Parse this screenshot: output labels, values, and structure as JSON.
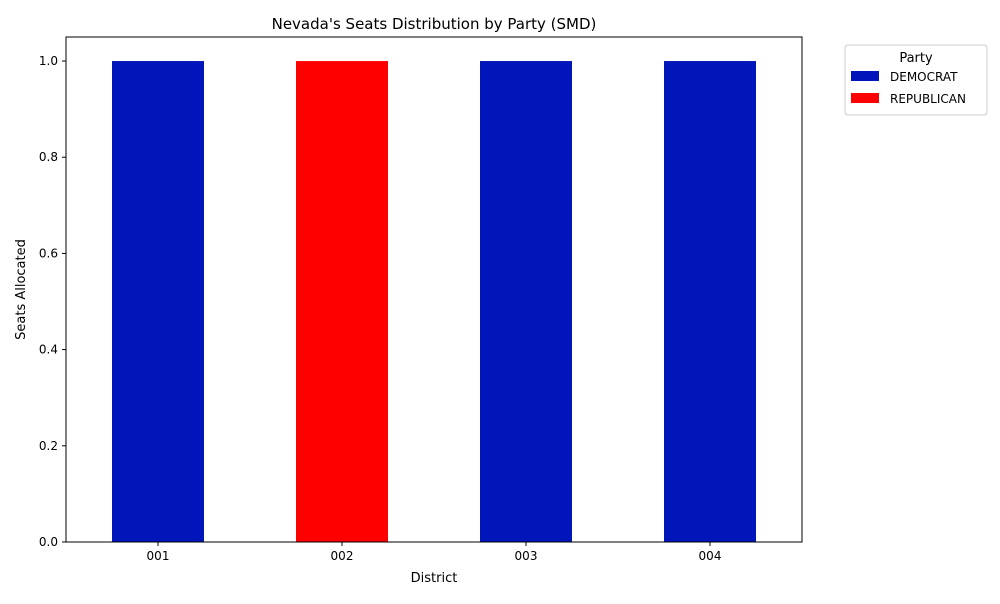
{
  "chart_data": {
    "type": "bar",
    "stacked": true,
    "title": "Nevada's Seats Distribution by Party (SMD)",
    "xlabel": "District",
    "ylabel": "Seats Allocated",
    "categories": [
      "001",
      "002",
      "003",
      "004"
    ],
    "series": [
      {
        "name": "DEMOCRAT",
        "color": "#0016BA",
        "values": [
          1,
          0,
          1,
          1
        ]
      },
      {
        "name": "REPUBLICAN",
        "color": "#FF0000",
        "values": [
          0,
          1,
          0,
          0
        ]
      }
    ],
    "ylim": [
      0,
      1.05
    ],
    "yticks": [
      0.0,
      0.2,
      0.4,
      0.6,
      0.8,
      1.0
    ],
    "ytick_labels": [
      "0.0",
      "0.2",
      "0.4",
      "0.6",
      "0.8",
      "1.0"
    ],
    "legend": {
      "title": "Party",
      "placement": "outside-top-right"
    },
    "grid": false
  }
}
